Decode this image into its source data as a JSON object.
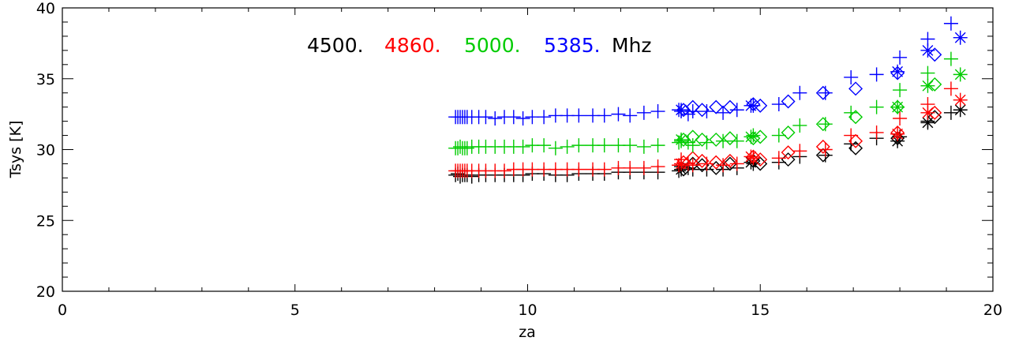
{
  "chart_data": {
    "type": "scatter",
    "title": "",
    "xlabel": "za",
    "ylabel": "Tsys [K]",
    "xlim": [
      0,
      20
    ],
    "ylim": [
      20,
      40
    ],
    "x_ticks": [
      "0",
      "5",
      "10",
      "15",
      "20"
    ],
    "y_ticks": [
      "20",
      "25",
      "30",
      "35",
      "40"
    ],
    "legend": {
      "items": [
        {
          "label": "4500.",
          "color": "#000000"
        },
        {
          "label": "4860.",
          "color": "#ff0000"
        },
        {
          "label": "5000.",
          "color": "#00cc00"
        },
        {
          "label": "5385.",
          "color": "#0000ff"
        }
      ],
      "unit": "Mhz",
      "placement": "top-left"
    },
    "marker_types": [
      "plus",
      "diamond",
      "asterisk"
    ],
    "series": [
      {
        "color": "#000000",
        "plus": [
          [
            8.45,
            28.2
          ],
          [
            8.5,
            28.3
          ],
          [
            8.55,
            28.1
          ],
          [
            8.6,
            28.2
          ],
          [
            8.65,
            28.2
          ],
          [
            8.7,
            28.2
          ],
          [
            8.8,
            28.1
          ],
          [
            8.95,
            28.2
          ],
          [
            9.1,
            28.2
          ],
          [
            9.3,
            28.2
          ],
          [
            9.5,
            28.2
          ],
          [
            9.7,
            28.2
          ],
          [
            9.9,
            28.2
          ],
          [
            10.1,
            28.3
          ],
          [
            10.35,
            28.3
          ],
          [
            10.6,
            28.2
          ],
          [
            10.85,
            28.2
          ],
          [
            11.1,
            28.3
          ],
          [
            11.4,
            28.3
          ],
          [
            11.65,
            28.3
          ],
          [
            11.95,
            28.4
          ],
          [
            12.2,
            28.4
          ],
          [
            12.5,
            28.4
          ],
          [
            12.8,
            28.4
          ],
          [
            13.25,
            28.5
          ],
          [
            13.3,
            28.8
          ],
          [
            13.45,
            28.7
          ],
          [
            13.55,
            28.6
          ],
          [
            13.85,
            28.6
          ],
          [
            14.2,
            28.6
          ],
          [
            14.5,
            28.7
          ],
          [
            14.85,
            29.0
          ],
          [
            15.4,
            29.1
          ],
          [
            15.85,
            29.5
          ],
          [
            16.4,
            29.6
          ],
          [
            16.95,
            30.4
          ],
          [
            17.5,
            30.8
          ],
          [
            18.0,
            30.9
          ],
          [
            18.6,
            32.0
          ],
          [
            19.1,
            32.6
          ]
        ],
        "diamond": [
          [
            13.35,
            28.6
          ],
          [
            13.55,
            29.0
          ],
          [
            13.75,
            28.9
          ],
          [
            14.05,
            28.7
          ],
          [
            14.35,
            29.0
          ],
          [
            14.85,
            29.2
          ],
          [
            15.0,
            29.0
          ],
          [
            15.6,
            29.3
          ],
          [
            16.35,
            29.6
          ],
          [
            17.05,
            30.1
          ],
          [
            17.95,
            30.8
          ],
          [
            18.75,
            32.3
          ]
        ],
        "asterisk": [
          [
            13.3,
            28.6
          ],
          [
            14.8,
            29.1
          ],
          [
            17.95,
            30.6
          ],
          [
            18.6,
            31.9
          ],
          [
            19.3,
            32.8
          ]
        ]
      },
      {
        "color": "#ff0000",
        "plus": [
          [
            8.45,
            28.5
          ],
          [
            8.5,
            28.5
          ],
          [
            8.55,
            28.5
          ],
          [
            8.6,
            28.5
          ],
          [
            8.65,
            28.5
          ],
          [
            8.7,
            28.5
          ],
          [
            8.8,
            28.5
          ],
          [
            8.95,
            28.5
          ],
          [
            9.1,
            28.5
          ],
          [
            9.3,
            28.5
          ],
          [
            9.5,
            28.5
          ],
          [
            9.7,
            28.6
          ],
          [
            9.9,
            28.6
          ],
          [
            10.1,
            28.6
          ],
          [
            10.35,
            28.6
          ],
          [
            10.6,
            28.6
          ],
          [
            10.85,
            28.6
          ],
          [
            11.1,
            28.6
          ],
          [
            11.4,
            28.6
          ],
          [
            11.65,
            28.6
          ],
          [
            11.95,
            28.7
          ],
          [
            12.2,
            28.7
          ],
          [
            12.5,
            28.7
          ],
          [
            12.8,
            28.8
          ],
          [
            13.25,
            28.9
          ],
          [
            13.3,
            29.3
          ],
          [
            13.45,
            29.0
          ],
          [
            13.55,
            28.9
          ],
          [
            13.85,
            29.0
          ],
          [
            14.2,
            28.9
          ],
          [
            14.5,
            29.0
          ],
          [
            14.85,
            29.4
          ],
          [
            15.4,
            29.4
          ],
          [
            15.85,
            29.9
          ],
          [
            16.4,
            30.0
          ],
          [
            16.95,
            31.0
          ],
          [
            17.5,
            31.2
          ],
          [
            18.0,
            32.2
          ],
          [
            18.6,
            33.2
          ],
          [
            19.1,
            34.3
          ]
        ],
        "diamond": [
          [
            13.35,
            29.1
          ],
          [
            13.55,
            29.4
          ],
          [
            13.75,
            29.2
          ],
          [
            14.05,
            29.1
          ],
          [
            14.35,
            29.2
          ],
          [
            14.85,
            29.5
          ],
          [
            15.0,
            29.3
          ],
          [
            15.6,
            29.8
          ],
          [
            16.35,
            30.2
          ],
          [
            17.05,
            30.6
          ],
          [
            17.95,
            31.2
          ],
          [
            18.75,
            32.6
          ]
        ],
        "asterisk": [
          [
            13.3,
            29.0
          ],
          [
            14.8,
            29.5
          ],
          [
            17.95,
            31.1
          ],
          [
            18.6,
            32.6
          ],
          [
            19.3,
            33.5
          ]
        ]
      },
      {
        "color": "#00cc00",
        "plus": [
          [
            8.45,
            30.1
          ],
          [
            8.5,
            30.1
          ],
          [
            8.55,
            30.2
          ],
          [
            8.6,
            30.1
          ],
          [
            8.65,
            30.1
          ],
          [
            8.7,
            30.1
          ],
          [
            8.8,
            30.2
          ],
          [
            8.95,
            30.2
          ],
          [
            9.1,
            30.2
          ],
          [
            9.3,
            30.2
          ],
          [
            9.5,
            30.2
          ],
          [
            9.7,
            30.2
          ],
          [
            9.9,
            30.2
          ],
          [
            10.1,
            30.3
          ],
          [
            10.35,
            30.3
          ],
          [
            10.6,
            30.1
          ],
          [
            10.85,
            30.2
          ],
          [
            11.1,
            30.3
          ],
          [
            11.4,
            30.3
          ],
          [
            11.65,
            30.3
          ],
          [
            11.95,
            30.3
          ],
          [
            12.2,
            30.3
          ],
          [
            12.5,
            30.2
          ],
          [
            12.8,
            30.3
          ],
          [
            13.25,
            30.5
          ],
          [
            13.3,
            30.6
          ],
          [
            13.45,
            30.5
          ],
          [
            13.55,
            30.3
          ],
          [
            13.85,
            30.5
          ],
          [
            14.2,
            30.6
          ],
          [
            14.5,
            30.6
          ],
          [
            14.85,
            31.0
          ],
          [
            15.4,
            31.0
          ],
          [
            15.85,
            31.7
          ],
          [
            16.4,
            31.8
          ],
          [
            16.95,
            32.6
          ],
          [
            17.5,
            33.0
          ],
          [
            18.0,
            34.2
          ],
          [
            18.6,
            35.4
          ],
          [
            19.1,
            36.4
          ]
        ],
        "diamond": [
          [
            13.35,
            30.7
          ],
          [
            13.55,
            30.9
          ],
          [
            13.75,
            30.7
          ],
          [
            14.05,
            30.7
          ],
          [
            14.35,
            30.8
          ],
          [
            14.85,
            30.8
          ],
          [
            15.0,
            30.9
          ],
          [
            15.6,
            31.2
          ],
          [
            16.35,
            31.8
          ],
          [
            17.05,
            32.3
          ],
          [
            17.95,
            33.0
          ],
          [
            18.75,
            34.6
          ]
        ],
        "asterisk": [
          [
            13.3,
            30.7
          ],
          [
            14.8,
            30.9
          ],
          [
            17.95,
            33.0
          ],
          [
            18.6,
            34.5
          ],
          [
            19.3,
            35.3
          ]
        ]
      },
      {
        "color": "#0000ff",
        "plus": [
          [
            8.45,
            32.3
          ],
          [
            8.5,
            32.3
          ],
          [
            8.55,
            32.3
          ],
          [
            8.6,
            32.3
          ],
          [
            8.65,
            32.3
          ],
          [
            8.7,
            32.3
          ],
          [
            8.8,
            32.3
          ],
          [
            8.95,
            32.3
          ],
          [
            9.1,
            32.3
          ],
          [
            9.3,
            32.2
          ],
          [
            9.5,
            32.3
          ],
          [
            9.7,
            32.3
          ],
          [
            9.9,
            32.2
          ],
          [
            10.1,
            32.3
          ],
          [
            10.35,
            32.3
          ],
          [
            10.6,
            32.4
          ],
          [
            10.85,
            32.4
          ],
          [
            11.1,
            32.4
          ],
          [
            11.4,
            32.4
          ],
          [
            11.65,
            32.4
          ],
          [
            11.95,
            32.5
          ],
          [
            12.2,
            32.4
          ],
          [
            12.5,
            32.6
          ],
          [
            12.8,
            32.7
          ],
          [
            13.25,
            32.8
          ],
          [
            13.3,
            32.7
          ],
          [
            13.45,
            32.5
          ],
          [
            13.55,
            32.7
          ],
          [
            13.85,
            32.7
          ],
          [
            14.2,
            32.6
          ],
          [
            14.5,
            32.8
          ],
          [
            14.85,
            33.1
          ],
          [
            15.4,
            33.2
          ],
          [
            15.85,
            34.0
          ],
          [
            16.4,
            34.0
          ],
          [
            16.95,
            35.1
          ],
          [
            17.5,
            35.3
          ],
          [
            18.0,
            36.5
          ],
          [
            18.6,
            37.8
          ],
          [
            19.1,
            38.9
          ]
        ],
        "diamond": [
          [
            13.35,
            32.8
          ],
          [
            13.55,
            33.0
          ],
          [
            13.75,
            32.8
          ],
          [
            14.05,
            33.0
          ],
          [
            14.35,
            33.0
          ],
          [
            14.85,
            33.2
          ],
          [
            15.0,
            33.1
          ],
          [
            15.6,
            33.4
          ],
          [
            16.35,
            34.0
          ],
          [
            17.05,
            34.3
          ],
          [
            17.95,
            35.4
          ],
          [
            18.75,
            36.7
          ]
        ],
        "asterisk": [
          [
            13.3,
            32.8
          ],
          [
            14.8,
            33.1
          ],
          [
            17.95,
            35.5
          ],
          [
            18.6,
            37.0
          ],
          [
            19.3,
            37.9
          ]
        ]
      }
    ]
  }
}
